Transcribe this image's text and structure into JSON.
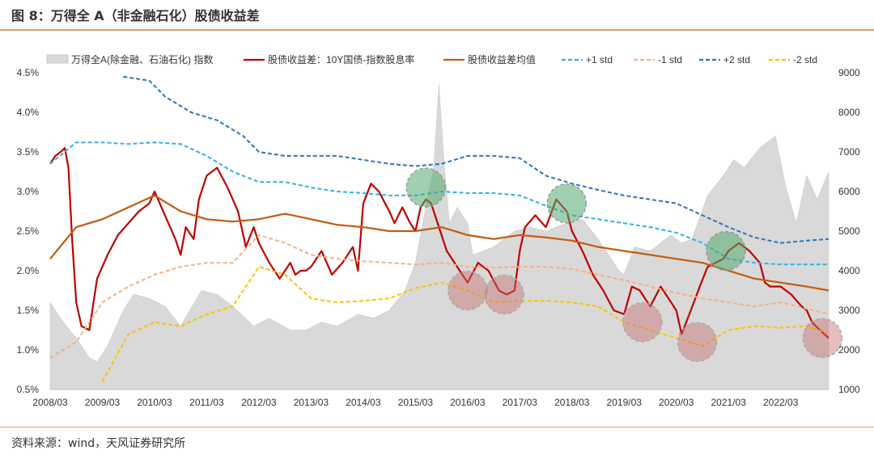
{
  "header": {
    "title": "图 8：万得全 A（非金融石化）股债收益差"
  },
  "footer": {
    "source": "资料来源：wind，天风证券研究所"
  },
  "chart_data": {
    "type": "line",
    "legend_position": "top",
    "grid": false,
    "x_ticks": [
      "2008/03",
      "2009/03",
      "2010/03",
      "2011/03",
      "2012/03",
      "2013/03",
      "2014/03",
      "2015/03",
      "2016/03",
      "2017/03",
      "2018/03",
      "2019/03",
      "2020/03",
      "2021/03",
      "2022/03"
    ],
    "x_range": [
      2008.0,
      2022.92
    ],
    "y_left": {
      "range": [
        0.5,
        4.5
      ],
      "ticks": [
        "0.5%",
        "1.0%",
        "1.5%",
        "2.0%",
        "2.5%",
        "3.0%",
        "3.5%",
        "4.0%",
        "4.5%"
      ]
    },
    "y_right": {
      "range": [
        1000,
        9000
      ],
      "ticks": [
        "1000",
        "2000",
        "3000",
        "4000",
        "5000",
        "6000",
        "7000",
        "8000",
        "9000"
      ]
    },
    "series": [
      {
        "name": "万得全A(除金融、石油石化) 指数",
        "axis": "right",
        "kind": "area",
        "color": "#d9d9d9",
        "x": [
          2008.0,
          2008.25,
          2008.5,
          2008.75,
          2008.9,
          2009.1,
          2009.4,
          2009.6,
          2009.9,
          2010.2,
          2010.5,
          2010.9,
          2011.2,
          2011.5,
          2011.9,
          2012.2,
          2012.6,
          2012.9,
          2013.2,
          2013.5,
          2013.9,
          2014.2,
          2014.5,
          2014.8,
          2015.0,
          2015.2,
          2015.35,
          2015.45,
          2015.55,
          2015.65,
          2015.8,
          2016.0,
          2016.1,
          2016.5,
          2016.9,
          2017.2,
          2017.5,
          2017.9,
          2018.2,
          2018.5,
          2018.9,
          2019.0,
          2019.2,
          2019.5,
          2019.9,
          2020.1,
          2020.3,
          2020.6,
          2020.9,
          2021.1,
          2021.3,
          2021.6,
          2021.9,
          2022.1,
          2022.3,
          2022.5,
          2022.7,
          2022.92
        ],
        "values": [
          3200,
          2700,
          2300,
          1800,
          1700,
          2100,
          3000,
          3400,
          3300,
          3100,
          2600,
          3500,
          3400,
          3100,
          2600,
          2800,
          2500,
          2500,
          2700,
          2600,
          2900,
          2800,
          3000,
          3500,
          4200,
          5600,
          6600,
          8700,
          6700,
          5200,
          5600,
          5200,
          4400,
          4600,
          5000,
          5100,
          5000,
          5200,
          5300,
          4800,
          4000,
          3900,
          4600,
          4500,
          4900,
          4700,
          4800,
          5900,
          6400,
          6800,
          6600,
          7100,
          7400,
          6100,
          5200,
          6400,
          5800,
          6500
        ]
      },
      {
        "name": "股债收益差：10Y国债-指数股息率",
        "axis": "left",
        "kind": "line",
        "color": "#c00000",
        "x": [
          2008.0,
          2008.1,
          2008.2,
          2008.28,
          2008.35,
          2008.42,
          2008.5,
          2008.6,
          2008.75,
          2008.9,
          2009.1,
          2009.3,
          2009.5,
          2009.7,
          2009.9,
          2010.0,
          2010.2,
          2010.4,
          2010.5,
          2010.6,
          2010.75,
          2010.85,
          2011.0,
          2011.2,
          2011.4,
          2011.6,
          2011.75,
          2011.9,
          2012.0,
          2012.2,
          2012.4,
          2012.6,
          2012.7,
          2012.8,
          2012.9,
          2013.0,
          2013.2,
          2013.4,
          2013.6,
          2013.8,
          2013.9,
          2014.0,
          2014.15,
          2014.3,
          2014.5,
          2014.6,
          2014.75,
          2014.9,
          2015.0,
          2015.1,
          2015.2,
          2015.3,
          2015.45,
          2015.6,
          2015.8,
          2016.0,
          2016.2,
          2016.4,
          2016.6,
          2016.75,
          2016.9,
          2017.0,
          2017.1,
          2017.3,
          2017.5,
          2017.7,
          2017.9,
          2018.0,
          2018.2,
          2018.4,
          2018.6,
          2018.8,
          2019.0,
          2019.15,
          2019.3,
          2019.5,
          2019.7,
          2019.9,
          2020.0,
          2020.1,
          2020.25,
          2020.45,
          2020.6,
          2020.75,
          2020.9,
          2021.0,
          2021.2,
          2021.4,
          2021.6,
          2021.7,
          2021.8,
          2022.0,
          2022.2,
          2022.4,
          2022.5,
          2022.6,
          2022.75,
          2022.92
        ],
        "values": [
          3.35,
          3.45,
          3.5,
          3.55,
          3.3,
          2.4,
          1.6,
          1.3,
          1.25,
          1.9,
          2.2,
          2.45,
          2.6,
          2.75,
          2.85,
          3.0,
          2.7,
          2.4,
          2.2,
          2.55,
          2.4,
          2.9,
          3.2,
          3.3,
          3.05,
          2.75,
          2.3,
          2.55,
          2.35,
          2.1,
          1.9,
          2.1,
          1.95,
          2.0,
          2.0,
          2.05,
          2.25,
          1.95,
          2.1,
          2.3,
          2.0,
          2.85,
          3.1,
          3.0,
          2.75,
          2.6,
          2.8,
          2.6,
          2.5,
          2.8,
          2.9,
          2.85,
          2.55,
          2.25,
          2.05,
          1.85,
          2.1,
          2.0,
          1.75,
          1.7,
          1.75,
          2.25,
          2.55,
          2.7,
          2.55,
          2.9,
          2.75,
          2.5,
          2.25,
          1.95,
          1.75,
          1.5,
          1.45,
          1.8,
          1.75,
          1.55,
          1.8,
          1.6,
          1.5,
          1.2,
          1.45,
          1.8,
          2.05,
          2.1,
          2.15,
          2.25,
          2.35,
          2.25,
          2.1,
          1.85,
          1.8,
          1.8,
          1.7,
          1.55,
          1.5,
          1.35,
          1.25,
          1.15
        ]
      },
      {
        "name": "股债收益差均值",
        "axis": "left",
        "kind": "line",
        "color": "#c55a11",
        "x": [
          2008.0,
          2008.5,
          2009.0,
          2009.5,
          2010.0,
          2010.5,
          2011.0,
          2011.5,
          2012.0,
          2012.5,
          2013.0,
          2013.5,
          2014.0,
          2014.5,
          2015.0,
          2015.5,
          2016.0,
          2016.5,
          2017.0,
          2017.5,
          2018.0,
          2018.5,
          2019.0,
          2019.5,
          2020.0,
          2020.5,
          2021.0,
          2021.5,
          2022.0,
          2022.5,
          2022.92
        ],
        "values": [
          2.15,
          2.55,
          2.65,
          2.8,
          2.95,
          2.75,
          2.65,
          2.62,
          2.65,
          2.72,
          2.65,
          2.58,
          2.55,
          2.5,
          2.5,
          2.55,
          2.45,
          2.4,
          2.45,
          2.42,
          2.38,
          2.3,
          2.25,
          2.2,
          2.15,
          2.1,
          2.0,
          1.9,
          1.85,
          1.8,
          1.75
        ]
      },
      {
        "name": "+1 std",
        "axis": "left",
        "kind": "dashed",
        "color": "#33b0e6",
        "x": [
          2008.0,
          2008.5,
          2009.0,
          2009.5,
          2010.0,
          2010.5,
          2011.0,
          2011.5,
          2012.0,
          2012.5,
          2013.0,
          2013.5,
          2014.0,
          2014.5,
          2015.0,
          2015.5,
          2016.0,
          2016.5,
          2017.0,
          2017.5,
          2018.0,
          2018.5,
          2019.0,
          2019.5,
          2020.0,
          2020.5,
          2021.0,
          2021.5,
          2022.0,
          2022.5,
          2022.92
        ],
        "values": [
          3.35,
          3.62,
          3.62,
          3.6,
          3.62,
          3.6,
          3.45,
          3.25,
          3.12,
          3.12,
          3.05,
          3.0,
          2.98,
          2.95,
          2.95,
          3.0,
          2.98,
          2.98,
          2.95,
          2.82,
          2.7,
          2.65,
          2.6,
          2.55,
          2.48,
          2.35,
          2.15,
          2.1,
          2.08,
          2.08,
          2.08
        ]
      },
      {
        "name": "-1 std",
        "axis": "left",
        "kind": "dashed",
        "color": "#f4b183",
        "x": [
          2008.0,
          2008.5,
          2009.0,
          2009.5,
          2010.0,
          2010.5,
          2011.0,
          2011.5,
          2012.0,
          2012.5,
          2013.0,
          2013.5,
          2014.0,
          2014.5,
          2015.0,
          2015.5,
          2016.0,
          2016.5,
          2017.0,
          2017.5,
          2018.0,
          2018.5,
          2019.0,
          2019.5,
          2020.0,
          2020.5,
          2021.0,
          2021.5,
          2022.0,
          2022.5,
          2022.92
        ],
        "values": [
          0.9,
          1.1,
          1.6,
          1.8,
          1.95,
          2.05,
          2.1,
          2.1,
          2.45,
          2.35,
          2.2,
          2.15,
          2.12,
          2.1,
          2.08,
          2.1,
          2.05,
          2.04,
          2.05,
          2.05,
          2.02,
          1.95,
          1.88,
          1.8,
          1.72,
          1.65,
          1.6,
          1.55,
          1.6,
          1.52,
          1.45
        ]
      },
      {
        "name": "+2 std",
        "axis": "left",
        "kind": "dashed",
        "color": "#2e75b6",
        "x": [
          2009.4,
          2009.9,
          2010.2,
          2010.7,
          2011.2,
          2011.7,
          2012.0,
          2012.5,
          2013.0,
          2013.5,
          2014.0,
          2014.5,
          2015.0,
          2015.5,
          2016.0,
          2016.5,
          2017.0,
          2017.5,
          2018.0,
          2018.5,
          2019.0,
          2019.5,
          2020.0,
          2020.5,
          2021.0,
          2021.5,
          2022.0,
          2022.5,
          2022.92
        ],
        "values": [
          4.45,
          4.4,
          4.2,
          4.0,
          3.9,
          3.7,
          3.5,
          3.45,
          3.45,
          3.45,
          3.4,
          3.35,
          3.32,
          3.35,
          3.45,
          3.45,
          3.42,
          3.2,
          3.1,
          3.02,
          2.95,
          2.9,
          2.85,
          2.7,
          2.55,
          2.42,
          2.35,
          2.38,
          2.4
        ]
      },
      {
        "name": "-2 std",
        "axis": "left",
        "kind": "dashed",
        "color": "#ffc000",
        "x": [
          2009.0,
          2009.5,
          2010.0,
          2010.5,
          2011.0,
          2011.5,
          2012.0,
          2012.5,
          2013.0,
          2013.5,
          2014.0,
          2014.5,
          2015.0,
          2015.5,
          2016.0,
          2016.5,
          2017.0,
          2017.5,
          2018.0,
          2018.5,
          2019.0,
          2019.5,
          2020.0,
          2020.5,
          2021.0,
          2021.5,
          2022.0,
          2022.5,
          2022.92
        ],
        "values": [
          0.6,
          1.2,
          1.35,
          1.3,
          1.45,
          1.55,
          2.05,
          1.95,
          1.65,
          1.6,
          1.62,
          1.65,
          1.78,
          1.85,
          1.75,
          1.6,
          1.62,
          1.62,
          1.6,
          1.55,
          1.35,
          1.25,
          1.15,
          1.05,
          1.25,
          1.3,
          1.28,
          1.3,
          1.2
        ]
      }
    ],
    "markers": {
      "green": [
        [
          2015.2,
          3.05
        ],
        [
          2017.9,
          2.85
        ],
        [
          2020.95,
          2.25
        ]
      ],
      "red": [
        [
          2016.0,
          1.75
        ],
        [
          2016.7,
          1.7
        ],
        [
          2019.35,
          1.35
        ],
        [
          2020.4,
          1.1
        ],
        [
          2022.8,
          1.15
        ]
      ]
    }
  }
}
